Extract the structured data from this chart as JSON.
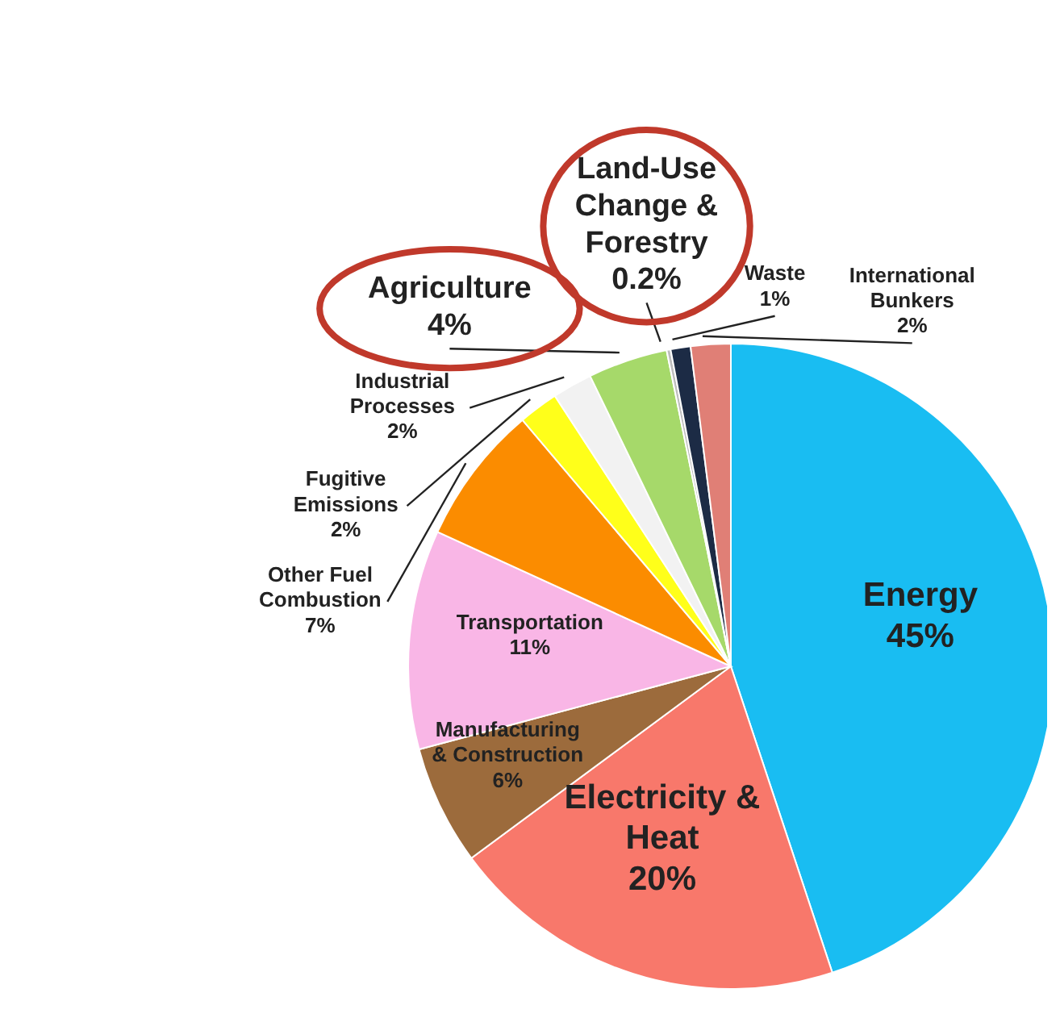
{
  "chart_data": {
    "type": "pie",
    "categories": [
      "Energy",
      "Electricity & Heat",
      "Manufacturing & Construction",
      "Transportation",
      "Other Fuel Combustion",
      "Fugitive Emissions",
      "Industrial Processes",
      "Agriculture",
      "Land-Use Change & Forestry",
      "Waste",
      "International Bunkers"
    ],
    "values": [
      45,
      20,
      6,
      11,
      7,
      2,
      2,
      4,
      0.2,
      1,
      2
    ],
    "colors": [
      "#19bdf2",
      "#f8786b",
      "#9c6b3c",
      "#f9b6e6",
      "#fb8c00",
      "#ffff1a",
      "#f2f2f2",
      "#a6d96a",
      "#bdbdbd",
      "#1c2b45",
      "#e07f76"
    ],
    "value_labels": [
      "45%",
      "20%",
      "6%",
      "11%",
      "7%",
      "2%",
      "2%",
      "4%",
      "0.2%",
      "1%",
      "2%"
    ],
    "legend": false
  }
}
